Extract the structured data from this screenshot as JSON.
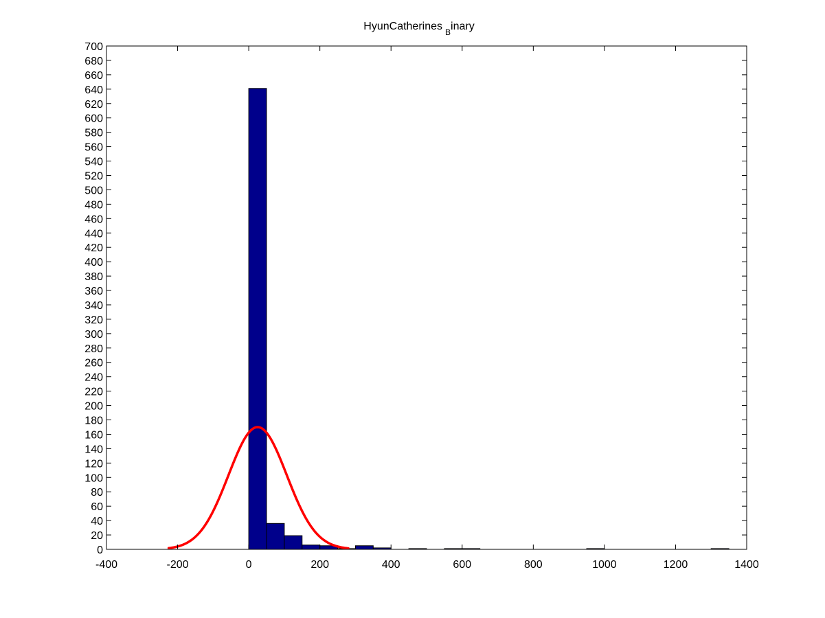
{
  "chart_data": {
    "type": "bar",
    "title_main": "HyunCatherines",
    "title_subscript": "B",
    "title_rest": "inary",
    "xlim": [
      -400,
      1400
    ],
    "ylim": [
      0,
      700
    ],
    "xticks": [
      -400,
      -200,
      0,
      200,
      400,
      600,
      800,
      1000,
      1200,
      1400
    ],
    "yticks": [
      0,
      20,
      40,
      60,
      80,
      100,
      120,
      140,
      160,
      180,
      200,
      220,
      240,
      260,
      280,
      300,
      320,
      340,
      360,
      380,
      400,
      420,
      440,
      460,
      480,
      500,
      520,
      540,
      560,
      580,
      600,
      620,
      640,
      660,
      680,
      700
    ],
    "bar_width": 50,
    "bins": [
      {
        "x0": 0,
        "x1": 50,
        "count": 641
      },
      {
        "x0": 50,
        "x1": 100,
        "count": 36
      },
      {
        "x0": 100,
        "x1": 150,
        "count": 19
      },
      {
        "x0": 150,
        "x1": 200,
        "count": 6
      },
      {
        "x0": 200,
        "x1": 250,
        "count": 5
      },
      {
        "x0": 250,
        "x1": 300,
        "count": 1
      },
      {
        "x0": 300,
        "x1": 350,
        "count": 5
      },
      {
        "x0": 350,
        "x1": 400,
        "count": 2
      },
      {
        "x0": 450,
        "x1": 500,
        "count": 1
      },
      {
        "x0": 550,
        "x1": 600,
        "count": 1
      },
      {
        "x0": 600,
        "x1": 650,
        "count": 1
      },
      {
        "x0": 950,
        "x1": 1000,
        "count": 1
      },
      {
        "x0": 1300,
        "x1": 1350,
        "count": 1
      }
    ],
    "fit_curve": {
      "type": "normal",
      "mean": 25,
      "sigma": 82,
      "peak": 170,
      "x_range": [
        -225,
        280
      ],
      "color": "#ff0000"
    },
    "bar_color": "#00008b",
    "grid": false,
    "legend": "none"
  }
}
